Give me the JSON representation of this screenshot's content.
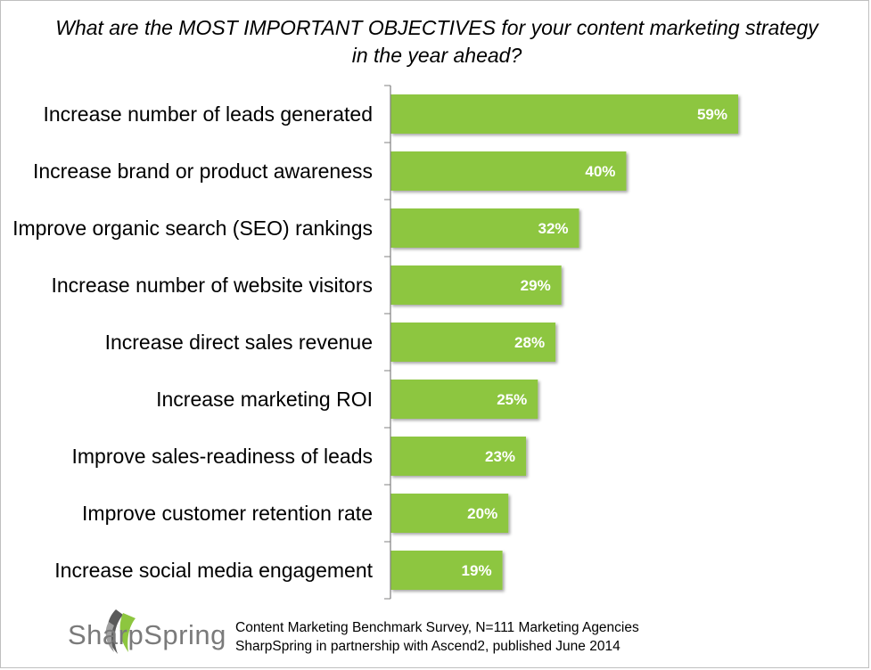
{
  "chart_data": {
    "type": "bar",
    "orientation": "horizontal",
    "title": "What are the MOST IMPORTANT OBJECTIVES for your content marketing strategy in the year ahead?",
    "categories": [
      "Increase number of leads generated",
      "Increase brand or product awareness",
      "Improve organic search (SEO) rankings",
      "Increase number of website visitors",
      "Increase direct sales revenue",
      "Increase marketing ROI",
      "Improve sales-readiness of leads",
      "Improve customer retention rate",
      "Increase social media engagement"
    ],
    "values": [
      59,
      40,
      32,
      29,
      28,
      25,
      23,
      20,
      19
    ],
    "value_labels": [
      "59%",
      "40%",
      "32%",
      "29%",
      "28%",
      "25%",
      "23%",
      "20%",
      "19%"
    ],
    "xlim": [
      0,
      100
    ],
    "grid": false,
    "bar_color": "#8dc63f"
  },
  "branding": {
    "logo_text": "SharpSpring",
    "logo_color": "#7a7a7a"
  },
  "footer": {
    "line1": "Content Marketing Benchmark Survey, N=111 Marketing Agencies",
    "line2": "SharpSpring in partnership with Ascend2, published June 2014"
  }
}
